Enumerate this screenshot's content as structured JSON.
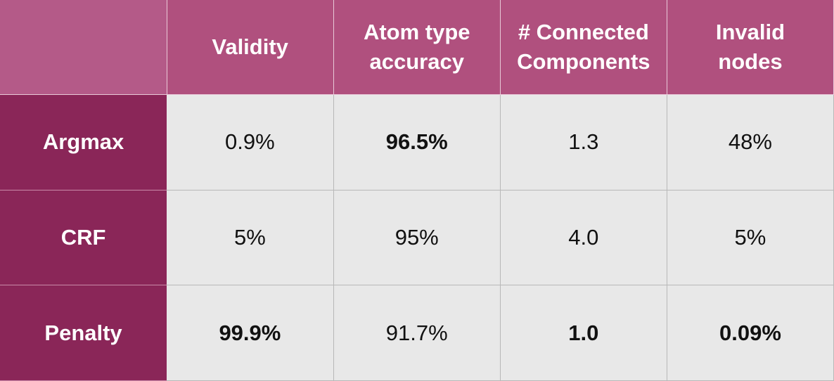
{
  "table": {
    "headers": [
      [
        "Validity"
      ],
      [
        "Atom type",
        "accuracy"
      ],
      [
        "# Connected",
        "Components"
      ],
      [
        "Invalid",
        "nodes"
      ]
    ],
    "rows": [
      {
        "label": "Argmax",
        "cells": [
          "0.9%",
          "96.5%",
          "1.3",
          "48%"
        ],
        "bold": [
          false,
          true,
          false,
          false
        ]
      },
      {
        "label": "CRF",
        "cells": [
          "5%",
          "95%",
          "4.0",
          "5%"
        ],
        "bold": [
          false,
          false,
          false,
          false
        ]
      },
      {
        "label": "Penalty",
        "cells": [
          "99.9%",
          "91.7%",
          "1.0",
          "0.09%"
        ],
        "bold": [
          true,
          false,
          true,
          true
        ]
      }
    ]
  }
}
